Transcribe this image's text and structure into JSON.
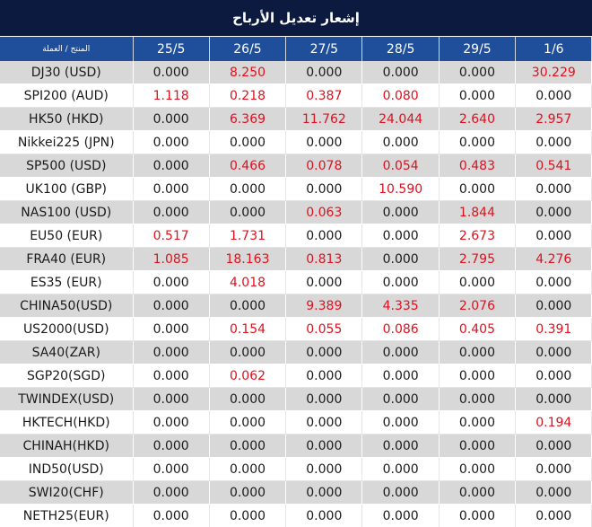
{
  "title": "إشعار تعديل الأرباح",
  "header": {
    "product_label": "المنتج / العملة",
    "dates": [
      "25/5",
      "26/5",
      "27/5",
      "28/5",
      "29/5",
      "1/6"
    ]
  },
  "colors": {
    "title_bg": "#0c1a40",
    "header_bg": "#1f4e9a",
    "stripe_bg": "#d8d8d8",
    "nonzero_text": "#e0101e",
    "zero_text": "#1a1a1a"
  },
  "rows": [
    {
      "product": "DJ30 (USD)",
      "values": [
        "0.000",
        "8.250",
        "0.000",
        "0.000",
        "0.000",
        "30.229"
      ]
    },
    {
      "product": "SPI200 (AUD)",
      "values": [
        "1.118",
        "0.218",
        "0.387",
        "0.080",
        "0.000",
        "0.000"
      ]
    },
    {
      "product": "HK50 (HKD)",
      "values": [
        "0.000",
        "6.369",
        "11.762",
        "24.044",
        "2.640",
        "2.957"
      ]
    },
    {
      "product": "Nikkei225 (JPN)",
      "values": [
        "0.000",
        "0.000",
        "0.000",
        "0.000",
        "0.000",
        "0.000"
      ]
    },
    {
      "product": "SP500 (USD)",
      "values": [
        "0.000",
        "0.466",
        "0.078",
        "0.054",
        "0.483",
        "0.541"
      ]
    },
    {
      "product": "UK100 (GBP)",
      "values": [
        "0.000",
        "0.000",
        "0.000",
        "10.590",
        "0.000",
        "0.000"
      ]
    },
    {
      "product": "NAS100 (USD)",
      "values": [
        "0.000",
        "0.000",
        "0.063",
        "0.000",
        "1.844",
        "0.000"
      ]
    },
    {
      "product": "EU50 (EUR)",
      "values": [
        "0.517",
        "1.731",
        "0.000",
        "0.000",
        "2.673",
        "0.000"
      ]
    },
    {
      "product": "FRA40 (EUR)",
      "values": [
        "1.085",
        "18.163",
        "0.813",
        "0.000",
        "2.795",
        "4.276"
      ]
    },
    {
      "product": "ES35 (EUR)",
      "values": [
        "0.000",
        "4.018",
        "0.000",
        "0.000",
        "0.000",
        "0.000"
      ]
    },
    {
      "product": "CHINA50(USD)",
      "values": [
        "0.000",
        "0.000",
        "9.389",
        "4.335",
        "2.076",
        "0.000"
      ]
    },
    {
      "product": "US2000(USD)",
      "values": [
        "0.000",
        "0.154",
        "0.055",
        "0.086",
        "0.405",
        "0.391"
      ]
    },
    {
      "product": "SA40(ZAR)",
      "values": [
        "0.000",
        "0.000",
        "0.000",
        "0.000",
        "0.000",
        "0.000"
      ]
    },
    {
      "product": "SGP20(SGD)",
      "values": [
        "0.000",
        "0.062",
        "0.000",
        "0.000",
        "0.000",
        "0.000"
      ]
    },
    {
      "product": "TWINDEX(USD)",
      "values": [
        "0.000",
        "0.000",
        "0.000",
        "0.000",
        "0.000",
        "0.000"
      ]
    },
    {
      "product": "HKTECH(HKD)",
      "values": [
        "0.000",
        "0.000",
        "0.000",
        "0.000",
        "0.000",
        "0.194"
      ]
    },
    {
      "product": "CHINAH(HKD)",
      "values": [
        "0.000",
        "0.000",
        "0.000",
        "0.000",
        "0.000",
        "0.000"
      ]
    },
    {
      "product": "IND50(USD)",
      "values": [
        "0.000",
        "0.000",
        "0.000",
        "0.000",
        "0.000",
        "0.000"
      ]
    },
    {
      "product": "SWI20(CHF)",
      "values": [
        "0.000",
        "0.000",
        "0.000",
        "0.000",
        "0.000",
        "0.000"
      ]
    },
    {
      "product": "NETH25(EUR)",
      "values": [
        "0.000",
        "0.000",
        "0.000",
        "0.000",
        "0.000",
        "0.000"
      ]
    }
  ]
}
